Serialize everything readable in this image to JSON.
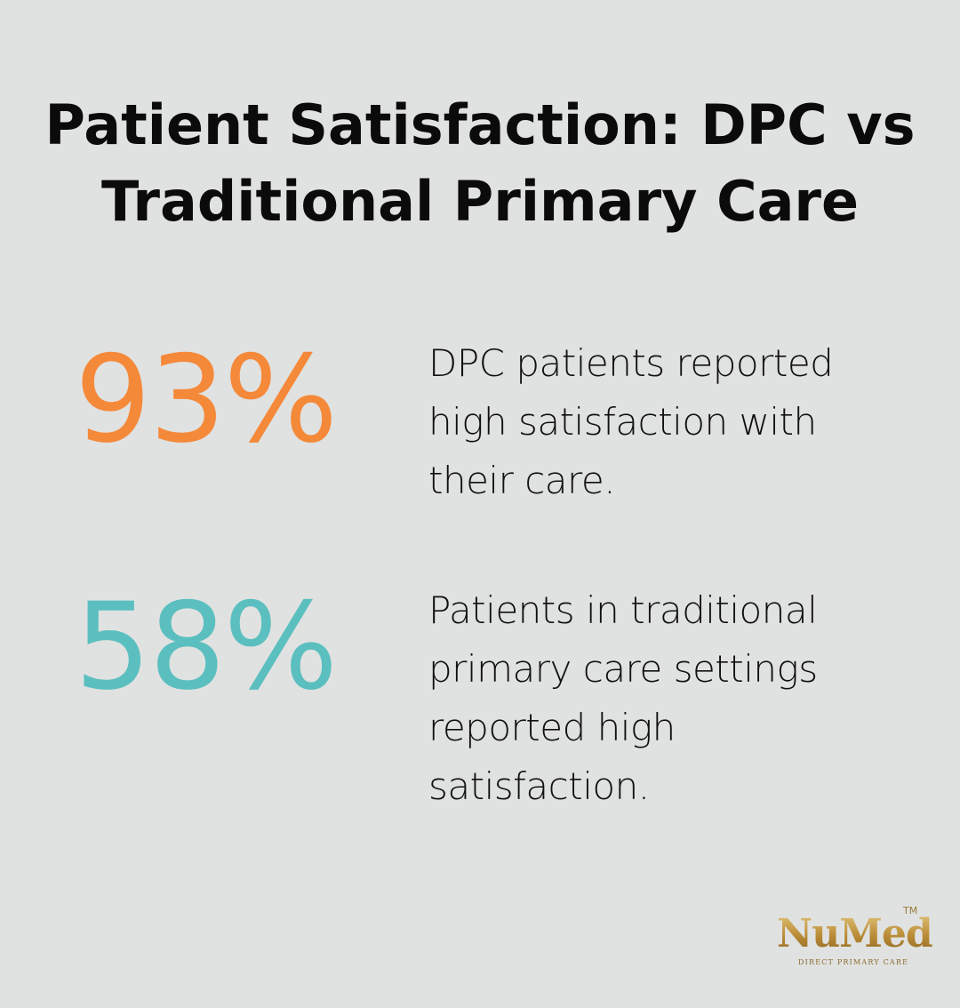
{
  "title": {
    "line1": "Patient Satisfaction: DPC vs",
    "line2": "Traditional Primary Care"
  },
  "stats": [
    {
      "value": "93%",
      "color": "#f5893a",
      "lines": [
        "DPC patients reported",
        "high satisfaction with",
        "their care."
      ]
    },
    {
      "value": "58%",
      "color": "#5bbfbf",
      "lines": [
        "Patients in traditional",
        "primary care settings",
        "reported high",
        "satisfaction."
      ]
    }
  ],
  "logo": {
    "name": "NuMed",
    "trademark": "TM",
    "tagline": "DIRECT PRIMARY CARE"
  }
}
